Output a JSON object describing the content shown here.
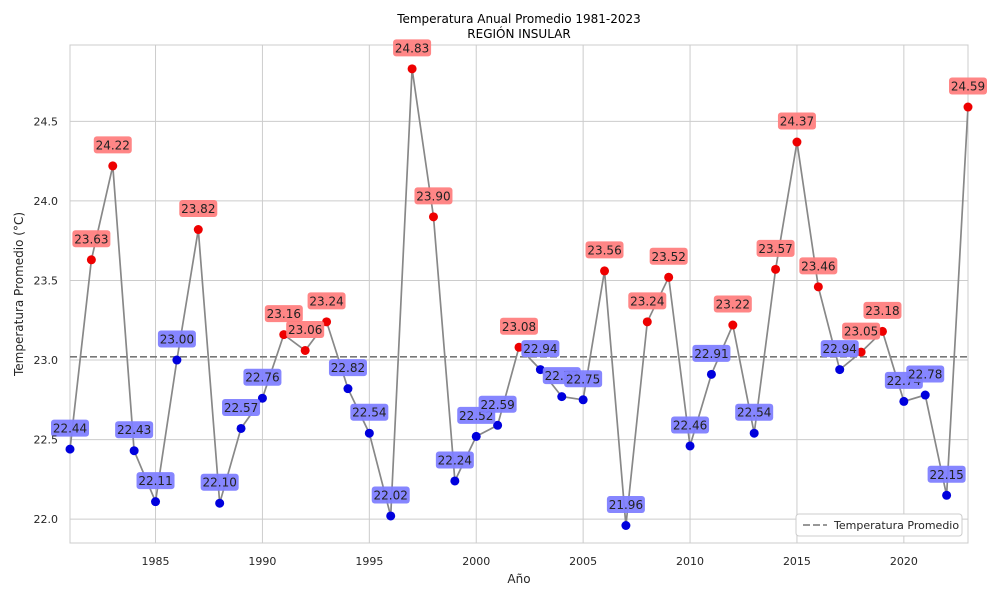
{
  "chart_data": {
    "type": "line",
    "title": "Temperatura Anual Promedio 1981-2023",
    "subtitle": "REGIÓN INSULAR",
    "xlabel": "Año",
    "ylabel": "Temperatura Promedio (°C)",
    "xlim": [
      1981,
      2023
    ],
    "ylim": [
      21.85,
      24.98
    ],
    "x_ticks": [
      1985,
      1990,
      1995,
      2000,
      2005,
      2010,
      2015,
      2020
    ],
    "y_ticks": [
      22.0,
      22.5,
      23.0,
      23.5,
      24.0,
      24.5
    ],
    "x_tick_labels": [
      "1985",
      "1990",
      "1995",
      "2000",
      "2005",
      "2010",
      "2015",
      "2020"
    ],
    "y_tick_labels": [
      "22.0",
      "22.5",
      "23.0",
      "23.5",
      "24.0",
      "24.5"
    ],
    "grid": true,
    "legend_position": "bottom-right",
    "legend_label": "Temperatura Promedio",
    "average": 23.02,
    "line_color": "#888888",
    "above_color": "#ee0000",
    "below_color": "#0000dd",
    "above_label_bg": "#ff7f7f",
    "below_label_bg": "#7f7fff",
    "x": [
      1981,
      1982,
      1983,
      1984,
      1985,
      1986,
      1987,
      1988,
      1989,
      1990,
      1991,
      1992,
      1993,
      1994,
      1995,
      1996,
      1997,
      1998,
      1999,
      2000,
      2001,
      2002,
      2003,
      2004,
      2005,
      2006,
      2007,
      2008,
      2009,
      2010,
      2011,
      2012,
      2013,
      2014,
      2015,
      2016,
      2017,
      2018,
      2019,
      2020,
      2021,
      2022,
      2023
    ],
    "y": [
      22.44,
      23.63,
      24.22,
      22.43,
      22.11,
      23.0,
      23.82,
      22.1,
      22.57,
      22.76,
      23.16,
      23.06,
      23.24,
      22.82,
      22.54,
      22.02,
      24.83,
      23.9,
      22.24,
      22.52,
      22.59,
      23.08,
      22.94,
      22.77,
      22.75,
      23.56,
      21.96,
      23.24,
      23.52,
      22.46,
      22.91,
      23.22,
      22.54,
      23.57,
      24.37,
      23.46,
      22.94,
      23.05,
      23.18,
      22.74,
      22.78,
      22.15,
      24.59
    ],
    "point_labels": [
      "22.44",
      "23.63",
      "24.22",
      "22.43",
      "22.11",
      "23.00",
      "23.82",
      "22.10",
      "22.57",
      "22.76",
      "23.16",
      "23.06",
      "23.24",
      "22.82",
      "22.54",
      "22.02",
      "24.83",
      "23.90",
      "22.24",
      "22.52",
      "22.59",
      "23.08",
      "22.94",
      "22.77",
      "22.75",
      "23.56",
      "21.96",
      "23.24",
      "23.52",
      "22.46",
      "22.91",
      "23.22",
      "22.54",
      "23.57",
      "24.37",
      "23.46",
      "22.94",
      "23.05",
      "23.18",
      "22.74",
      "22.78",
      "22.15",
      "24.59"
    ]
  }
}
